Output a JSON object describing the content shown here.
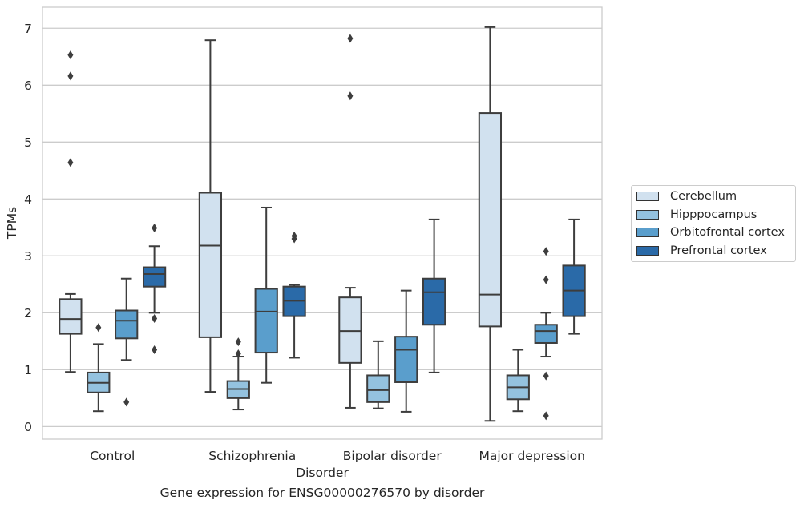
{
  "chart_data": {
    "type": "box",
    "caption": "Gene expression for ENSG00000276570 by disorder",
    "xlabel": "Disorder",
    "ylabel": "TPMs",
    "ylim": [
      -0.22,
      7.37
    ],
    "yticks": [
      0,
      1,
      2,
      3,
      4,
      5,
      6,
      7
    ],
    "grid": true,
    "legend_position": "right",
    "categories": [
      "Control",
      "Schizophrenia",
      "Bipolar disorder",
      "Major depression"
    ],
    "series": [
      {
        "name": "Cerebellum",
        "color": "#d1e1ef",
        "boxes": [
          {
            "whisker_low": 0.96,
            "q1": 1.63,
            "median": 1.89,
            "q3": 2.24,
            "whisker_high": 2.33,
            "outliers": [
              4.64,
              6.16,
              6.53
            ]
          },
          {
            "whisker_low": 0.61,
            "q1": 1.57,
            "median": 3.18,
            "q3": 4.11,
            "whisker_high": 6.79,
            "outliers": []
          },
          {
            "whisker_low": 0.33,
            "q1": 1.12,
            "median": 1.68,
            "q3": 2.27,
            "whisker_high": 2.44,
            "outliers": [
              5.81,
              6.82
            ]
          },
          {
            "whisker_low": 0.1,
            "q1": 1.76,
            "median": 2.32,
            "q3": 5.51,
            "whisker_high": 7.02,
            "outliers": []
          }
        ]
      },
      {
        "name": "Hipppocampus",
        "color": "#94c2df",
        "boxes": [
          {
            "whisker_low": 0.27,
            "q1": 0.6,
            "median": 0.77,
            "q3": 0.95,
            "whisker_high": 1.45,
            "outliers": [
              1.74
            ]
          },
          {
            "whisker_low": 0.3,
            "q1": 0.5,
            "median": 0.66,
            "q3": 0.8,
            "whisker_high": 1.23,
            "outliers": [
              1.28,
              1.49
            ]
          },
          {
            "whisker_low": 0.32,
            "q1": 0.43,
            "median": 0.64,
            "q3": 0.9,
            "whisker_high": 1.5,
            "outliers": []
          },
          {
            "whisker_low": 0.27,
            "q1": 0.48,
            "median": 0.69,
            "q3": 0.9,
            "whisker_high": 1.35,
            "outliers": []
          }
        ]
      },
      {
        "name": "Orbitofrontal cortex",
        "color": "#5a9ecc",
        "boxes": [
          {
            "whisker_low": 1.17,
            "q1": 1.55,
            "median": 1.86,
            "q3": 2.04,
            "whisker_high": 2.6,
            "outliers": [
              0.43
            ]
          },
          {
            "whisker_low": 0.77,
            "q1": 1.3,
            "median": 2.02,
            "q3": 2.42,
            "whisker_high": 3.85,
            "outliers": []
          },
          {
            "whisker_low": 0.26,
            "q1": 0.78,
            "median": 1.35,
            "q3": 1.58,
            "whisker_high": 2.39,
            "outliers": []
          },
          {
            "whisker_low": 1.23,
            "q1": 1.47,
            "median": 1.68,
            "q3": 1.79,
            "whisker_high": 2.0,
            "outliers": [
              0.19,
              0.89,
              2.58,
              3.08
            ]
          }
        ]
      },
      {
        "name": "Prefrontal cortex",
        "color": "#2a6aa8",
        "boxes": [
          {
            "whisker_low": 2.0,
            "q1": 2.46,
            "median": 2.68,
            "q3": 2.8,
            "whisker_high": 3.17,
            "outliers": [
              1.35,
              1.9,
              3.49
            ]
          },
          {
            "whisker_low": 1.21,
            "q1": 1.94,
            "median": 2.21,
            "q3": 2.46,
            "whisker_high": 2.49,
            "outliers": [
              3.3,
              3.35
            ]
          },
          {
            "whisker_low": 0.95,
            "q1": 1.79,
            "median": 2.36,
            "q3": 2.6,
            "whisker_high": 3.64,
            "outliers": []
          },
          {
            "whisker_low": 1.63,
            "q1": 1.94,
            "median": 2.39,
            "q3": 2.83,
            "whisker_high": 3.64,
            "outliers": []
          }
        ]
      }
    ]
  }
}
